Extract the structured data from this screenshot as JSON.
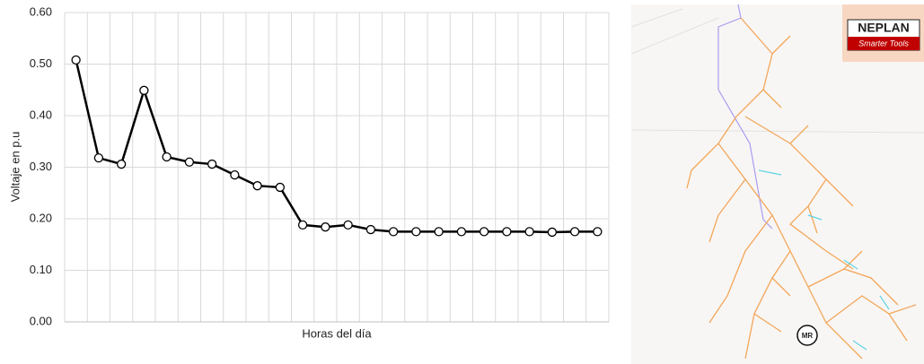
{
  "chart_data": {
    "type": "line",
    "y_label": "Voltaje en p.u",
    "x_label": "Horas del día",
    "categories": [
      null,
      null,
      null,
      null,
      null,
      null,
      null,
      null,
      null,
      null,
      null,
      null,
      null,
      null,
      null,
      null,
      null,
      null,
      null,
      null,
      null,
      null,
      null,
      null
    ],
    "series": [
      {
        "name": null,
        "color": "#000000",
        "values": [
          0.508,
          0.318,
          0.306,
          0.449,
          0.32,
          0.31,
          0.306,
          0.285,
          0.264,
          0.261,
          0.188,
          0.184,
          0.188,
          0.179,
          0.175,
          0.175,
          0.175,
          0.175,
          0.175,
          0.175,
          0.175,
          0.174,
          0.175,
          0.175
        ]
      }
    ],
    "ylim": [
      0,
      0.6
    ],
    "yticks": [
      {
        "value": 0,
        "label": "0.00"
      },
      {
        "value": 0.1,
        "label": "0.10"
      },
      {
        "value": 0.2,
        "label": "0.20"
      },
      {
        "value": 0.3,
        "label": "0.30"
      },
      {
        "value": 0.4,
        "label": "0.40"
      },
      {
        "value": 0.5,
        "label": "0.50"
      },
      {
        "value": 0.6,
        "label": "0.60"
      }
    ],
    "grid": true
  },
  "map": {
    "logo_title": "NEPLAN",
    "logo_tagline": "Smarter Tools",
    "marker": "MR"
  }
}
